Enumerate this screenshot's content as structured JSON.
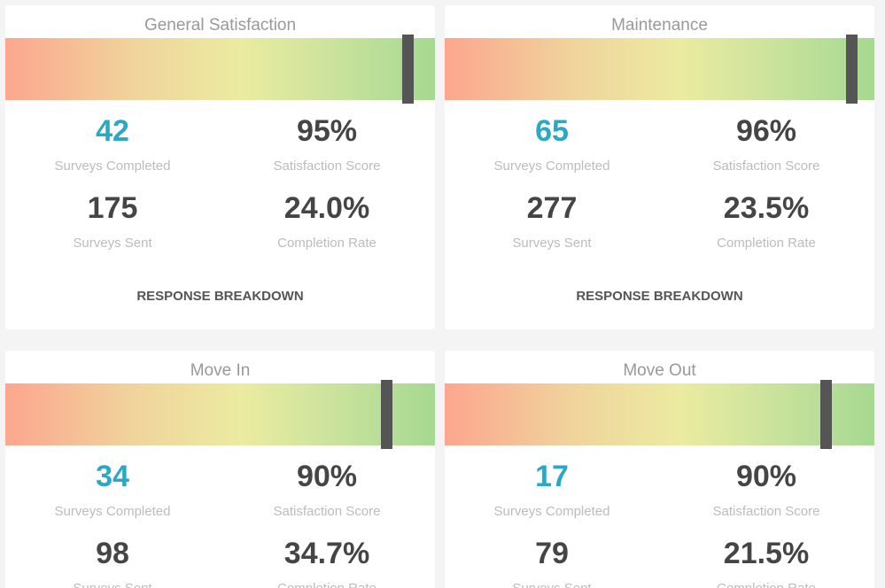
{
  "cards": [
    {
      "title": "General Satisfaction",
      "surveys_completed": "42",
      "surveys_completed_label": "Surveys Completed",
      "satisfaction_score": {
        "value": 95,
        "label": "95%"
      },
      "satisfaction_score_label": "Satisfaction Score",
      "surveys_sent": "175",
      "surveys_sent_label": "Surveys Sent",
      "completion_rate": "24.0%",
      "completion_rate_label": "Completion Rate",
      "action": "RESPONSE BREAKDOWN"
    },
    {
      "title": "Maintenance",
      "surveys_completed": "65",
      "surveys_completed_label": "Surveys Completed",
      "satisfaction_score": {
        "value": 96,
        "label": "96%"
      },
      "satisfaction_score_label": "Satisfaction Score",
      "surveys_sent": "277",
      "surveys_sent_label": "Surveys Sent",
      "completion_rate": "23.5%",
      "completion_rate_label": "Completion Rate",
      "action": "RESPONSE BREAKDOWN"
    },
    {
      "title": "Move In",
      "surveys_completed": "34",
      "surveys_completed_label": "Surveys Completed",
      "satisfaction_score": {
        "value": 90,
        "label": "90%"
      },
      "satisfaction_score_label": "Satisfaction Score",
      "surveys_sent": "98",
      "surveys_sent_label": "Surveys Sent",
      "completion_rate": "34.7%",
      "completion_rate_label": "Completion Rate"
    },
    {
      "title": "Move Out",
      "surveys_completed": "17",
      "surveys_completed_label": "Surveys Completed",
      "satisfaction_score": {
        "value": 90,
        "label": "90%"
      },
      "satisfaction_score_label": "Satisfaction Score",
      "surveys_sent": "79",
      "surveys_sent_label": "Surveys Sent",
      "completion_rate": "21.5%",
      "completion_rate_label": "Completion Rate"
    }
  ]
}
